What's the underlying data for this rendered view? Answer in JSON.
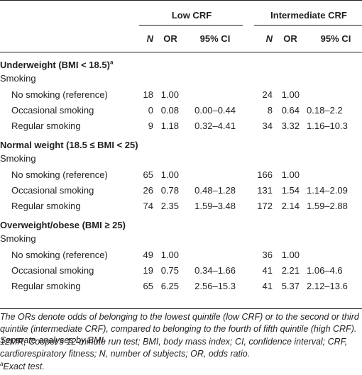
{
  "header": {
    "group_low": "Low CRF",
    "group_intermediate": "Intermediate CRF",
    "col_n": "N",
    "col_or": "OR",
    "col_ci": "95% CI"
  },
  "sections": [
    {
      "title": "Underweight (BMI < 18.5)",
      "title_sup": "a",
      "subheading": "Smoking",
      "rows": [
        {
          "label": "No smoking (reference)",
          "low_n": "18",
          "low_or": "1.00",
          "low_ci": "",
          "int_n": "24",
          "int_or": "1.00",
          "int_ci": ""
        },
        {
          "label": "Occasional smoking",
          "low_n": "0",
          "low_or": "0.08",
          "low_ci": "0.00–0.44",
          "int_n": "8",
          "int_or": "0.64",
          "int_ci": "0.18–2.2"
        },
        {
          "label": "Regular smoking",
          "low_n": "9",
          "low_or": "1.18",
          "low_ci": "0.32–4.41",
          "int_n": "34",
          "int_or": "3.32",
          "int_ci": "1.16–10.3"
        }
      ]
    },
    {
      "title": "Normal weight (18.5 ≤ BMI < 25)",
      "title_sup": "",
      "subheading": "Smoking",
      "rows": [
        {
          "label": "No smoking (reference)",
          "low_n": "65",
          "low_or": "1.00",
          "low_ci": "",
          "int_n": "166",
          "int_or": "1.00",
          "int_ci": ""
        },
        {
          "label": "Occasional smoking",
          "low_n": "26",
          "low_or": "0.78",
          "low_ci": "0.48–1.28",
          "int_n": "131",
          "int_or": "1.54",
          "int_ci": "1.14–2.09"
        },
        {
          "label": "Regular smoking",
          "low_n": "74",
          "low_or": "2.35",
          "low_ci": "1.59–3.48",
          "int_n": "172",
          "int_or": "2.14",
          "int_ci": "1.59–2.88"
        }
      ]
    },
    {
      "title": "Overweight/obese (BMI ≥ 25)",
      "title_sup": "",
      "subheading": "Smoking",
      "rows": [
        {
          "label": "No smoking (reference)",
          "low_n": "49",
          "low_or": "1.00",
          "low_ci": "",
          "int_n": "36",
          "int_or": "1.00",
          "int_ci": ""
        },
        {
          "label": "Occasional smoking",
          "low_n": "19",
          "low_or": "0.75",
          "low_ci": "0.34–1.66",
          "int_n": "41",
          "int_or": "2.21",
          "int_ci": "1.06–4.6"
        },
        {
          "label": "Regular smoking",
          "low_n": "65",
          "low_or": "6.25",
          "low_ci": "2.56–15.3",
          "int_n": "41",
          "int_or": "5.37",
          "int_ci": "2.12–13.6"
        }
      ]
    }
  ],
  "footnotes": {
    "note1": "The ORs denote odds of belonging to the lowest quintile (low CRF) or to the second or third quintile (intermediate CRF), compared to belonging to the fourth of fifth quintile (high CRF). Separate analyses by BMI.",
    "note2": "12MR, Cooper's 12-minute run test; BMI, body mass index; CI, confidence interval; CRF, cardiorespiratory fitness; N, number of subjects; OR, odds ratio.",
    "note3_sup": "a",
    "note3": "Exact test."
  }
}
